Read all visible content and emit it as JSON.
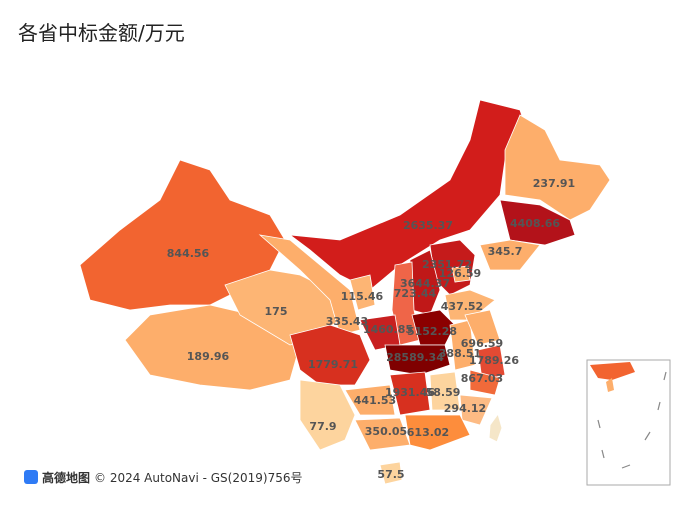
{
  "chart_data": {
    "type": "map",
    "title": "各省中标金额/万元",
    "values": [
      844.56,
      189.96,
      175,
      335.43,
      2635.37,
      237.91,
      4408.66,
      345.7,
      2351.72,
      126.59,
      3644.37,
      115.46,
      723.44,
      437.52,
      5152.28,
      1779.71,
      1460.85,
      28589.34,
      388.51,
      696.59,
      1789.26,
      1931.46,
      58.59,
      867.03,
      294.12,
      441.53,
      77.9,
      350.05,
      613.02,
      57.5
    ],
    "colors": [
      "#f26430",
      "#fdae6b",
      "#fdb574",
      "#fdae6b",
      "#d21d1b",
      "#fdae6b",
      "#b3121a",
      "#fdae6b",
      "#c51b1b",
      "#fdae6b",
      "#c01818",
      "#fdb574",
      "#ef6548",
      "#fdb574",
      "#8b0000",
      "#d7301f",
      "#c82020",
      "#7f0000",
      "#fdae6b",
      "#fdae6b",
      "#e34a33",
      "#d7301f",
      "#fdd49e",
      "#f16a3a",
      "#fdbb84",
      "#fdae6b",
      "#fdd49e",
      "#fdae6b",
      "#fd8d3c",
      "#fdd49e"
    ],
    "attribution": {
      "logo": "高德地图",
      "text": "© 2024 AutoNavi - GS(2019)756号"
    }
  }
}
